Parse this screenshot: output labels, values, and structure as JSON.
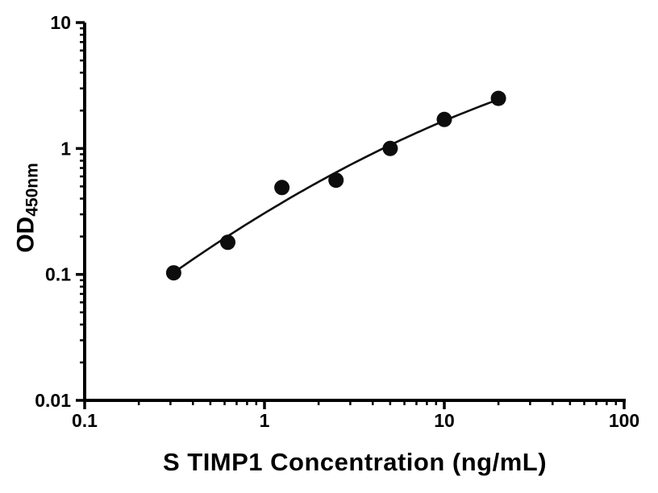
{
  "chart_data": {
    "type": "scatter",
    "title": "",
    "xlabel": "S TIMP1 Concentration (ng/mL)",
    "ylabel_main": "OD",
    "ylabel_sub": "450nm",
    "x_scale": "log10",
    "y_scale": "log10",
    "xlim": [
      0.1,
      100
    ],
    "ylim": [
      0.01,
      10
    ],
    "grid": false,
    "legend": false,
    "x_ticks": [
      {
        "value": 0.1,
        "label": "0.1"
      },
      {
        "value": 1,
        "label": "1"
      },
      {
        "value": 10,
        "label": "10"
      },
      {
        "value": 100,
        "label": "100"
      }
    ],
    "y_ticks": [
      {
        "value": 0.01,
        "label": "0.01"
      },
      {
        "value": 0.1,
        "label": "0.1"
      },
      {
        "value": 1,
        "label": "1"
      },
      {
        "value": 10,
        "label": "10"
      }
    ],
    "minor_ticks": true,
    "points": {
      "x": [
        0.3125,
        0.625,
        1.25,
        2.5,
        5,
        10,
        20
      ],
      "y": [
        0.103,
        0.18,
        0.49,
        0.56,
        1.0,
        1.7,
        2.5
      ]
    },
    "fit": {
      "type": "quadratic-loglog"
    },
    "colors": {
      "marker": "#0d0d0d",
      "line": "#0d0d0d",
      "axis": "#000000",
      "background": "#ffffff"
    }
  }
}
